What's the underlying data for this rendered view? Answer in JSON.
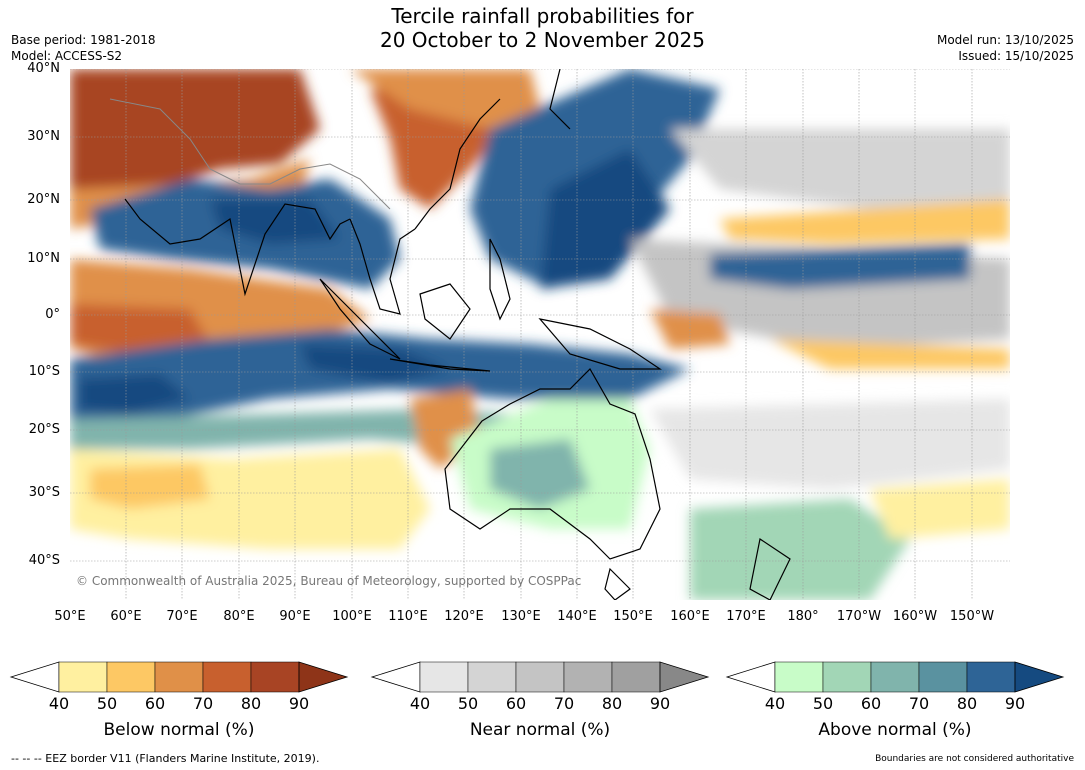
{
  "title": {
    "line1": "Tercile rainfall probabilities for",
    "line2": "20 October to 2 November 2025"
  },
  "meta": {
    "base_period": "Base period: 1981-2018",
    "model": "Model: ACCESS-S2",
    "model_run": "Model run: 13/10/2025",
    "issued": "Issued: 15/10/2025"
  },
  "map": {
    "lat_labels": [
      "40°N",
      "30°N",
      "20°N",
      "10°N",
      "0°",
      "10°S",
      "20°S",
      "30°S",
      "40°S"
    ],
    "lon_labels": [
      "50°E",
      "60°E",
      "70°E",
      "80°E",
      "90°E",
      "100°E",
      "110°E",
      "120°E",
      "130°E",
      "140°E",
      "150°E",
      "160°E",
      "170°E",
      "180°",
      "170°W",
      "160°W",
      "150°W"
    ],
    "copyright": "© Commonwealth of Australia 2025, Bureau of Meteorology, supported by COSPPac",
    "colors": {
      "ocean": "#ffffff",
      "coast": "#000000",
      "border": "#888888",
      "grid": "#999999"
    }
  },
  "colorbars": [
    {
      "name": "below",
      "label": "Below normal (%)",
      "ticks": [
        "40",
        "50",
        "60",
        "70",
        "80",
        "90"
      ],
      "colors": [
        "#ffffff",
        "#fff0a0",
        "#fdc864",
        "#e09048",
        "#c8602e",
        "#a84424",
        "#8e3418"
      ]
    },
    {
      "name": "near",
      "label": "Near normal (%)",
      "ticks": [
        "40",
        "50",
        "60",
        "70",
        "80",
        "90"
      ],
      "colors": [
        "#ffffff",
        "#e6e6e6",
        "#d4d4d4",
        "#c4c4c4",
        "#b2b2b2",
        "#a0a0a0",
        "#888888"
      ]
    },
    {
      "name": "above",
      "label": "Above normal (%)",
      "ticks": [
        "40",
        "50",
        "60",
        "70",
        "80",
        "90"
      ],
      "colors": [
        "#ffffff",
        "#c8fcc8",
        "#a2d6b6",
        "#80b4ac",
        "#5a92a0",
        "#2e6496",
        "#154a80"
      ]
    }
  ],
  "footer": {
    "eez": "--  --  -- EEZ border V11 (Flanders Marine Institute, 2019).",
    "disclaimer": "Boundaries are not considered authoritative"
  }
}
